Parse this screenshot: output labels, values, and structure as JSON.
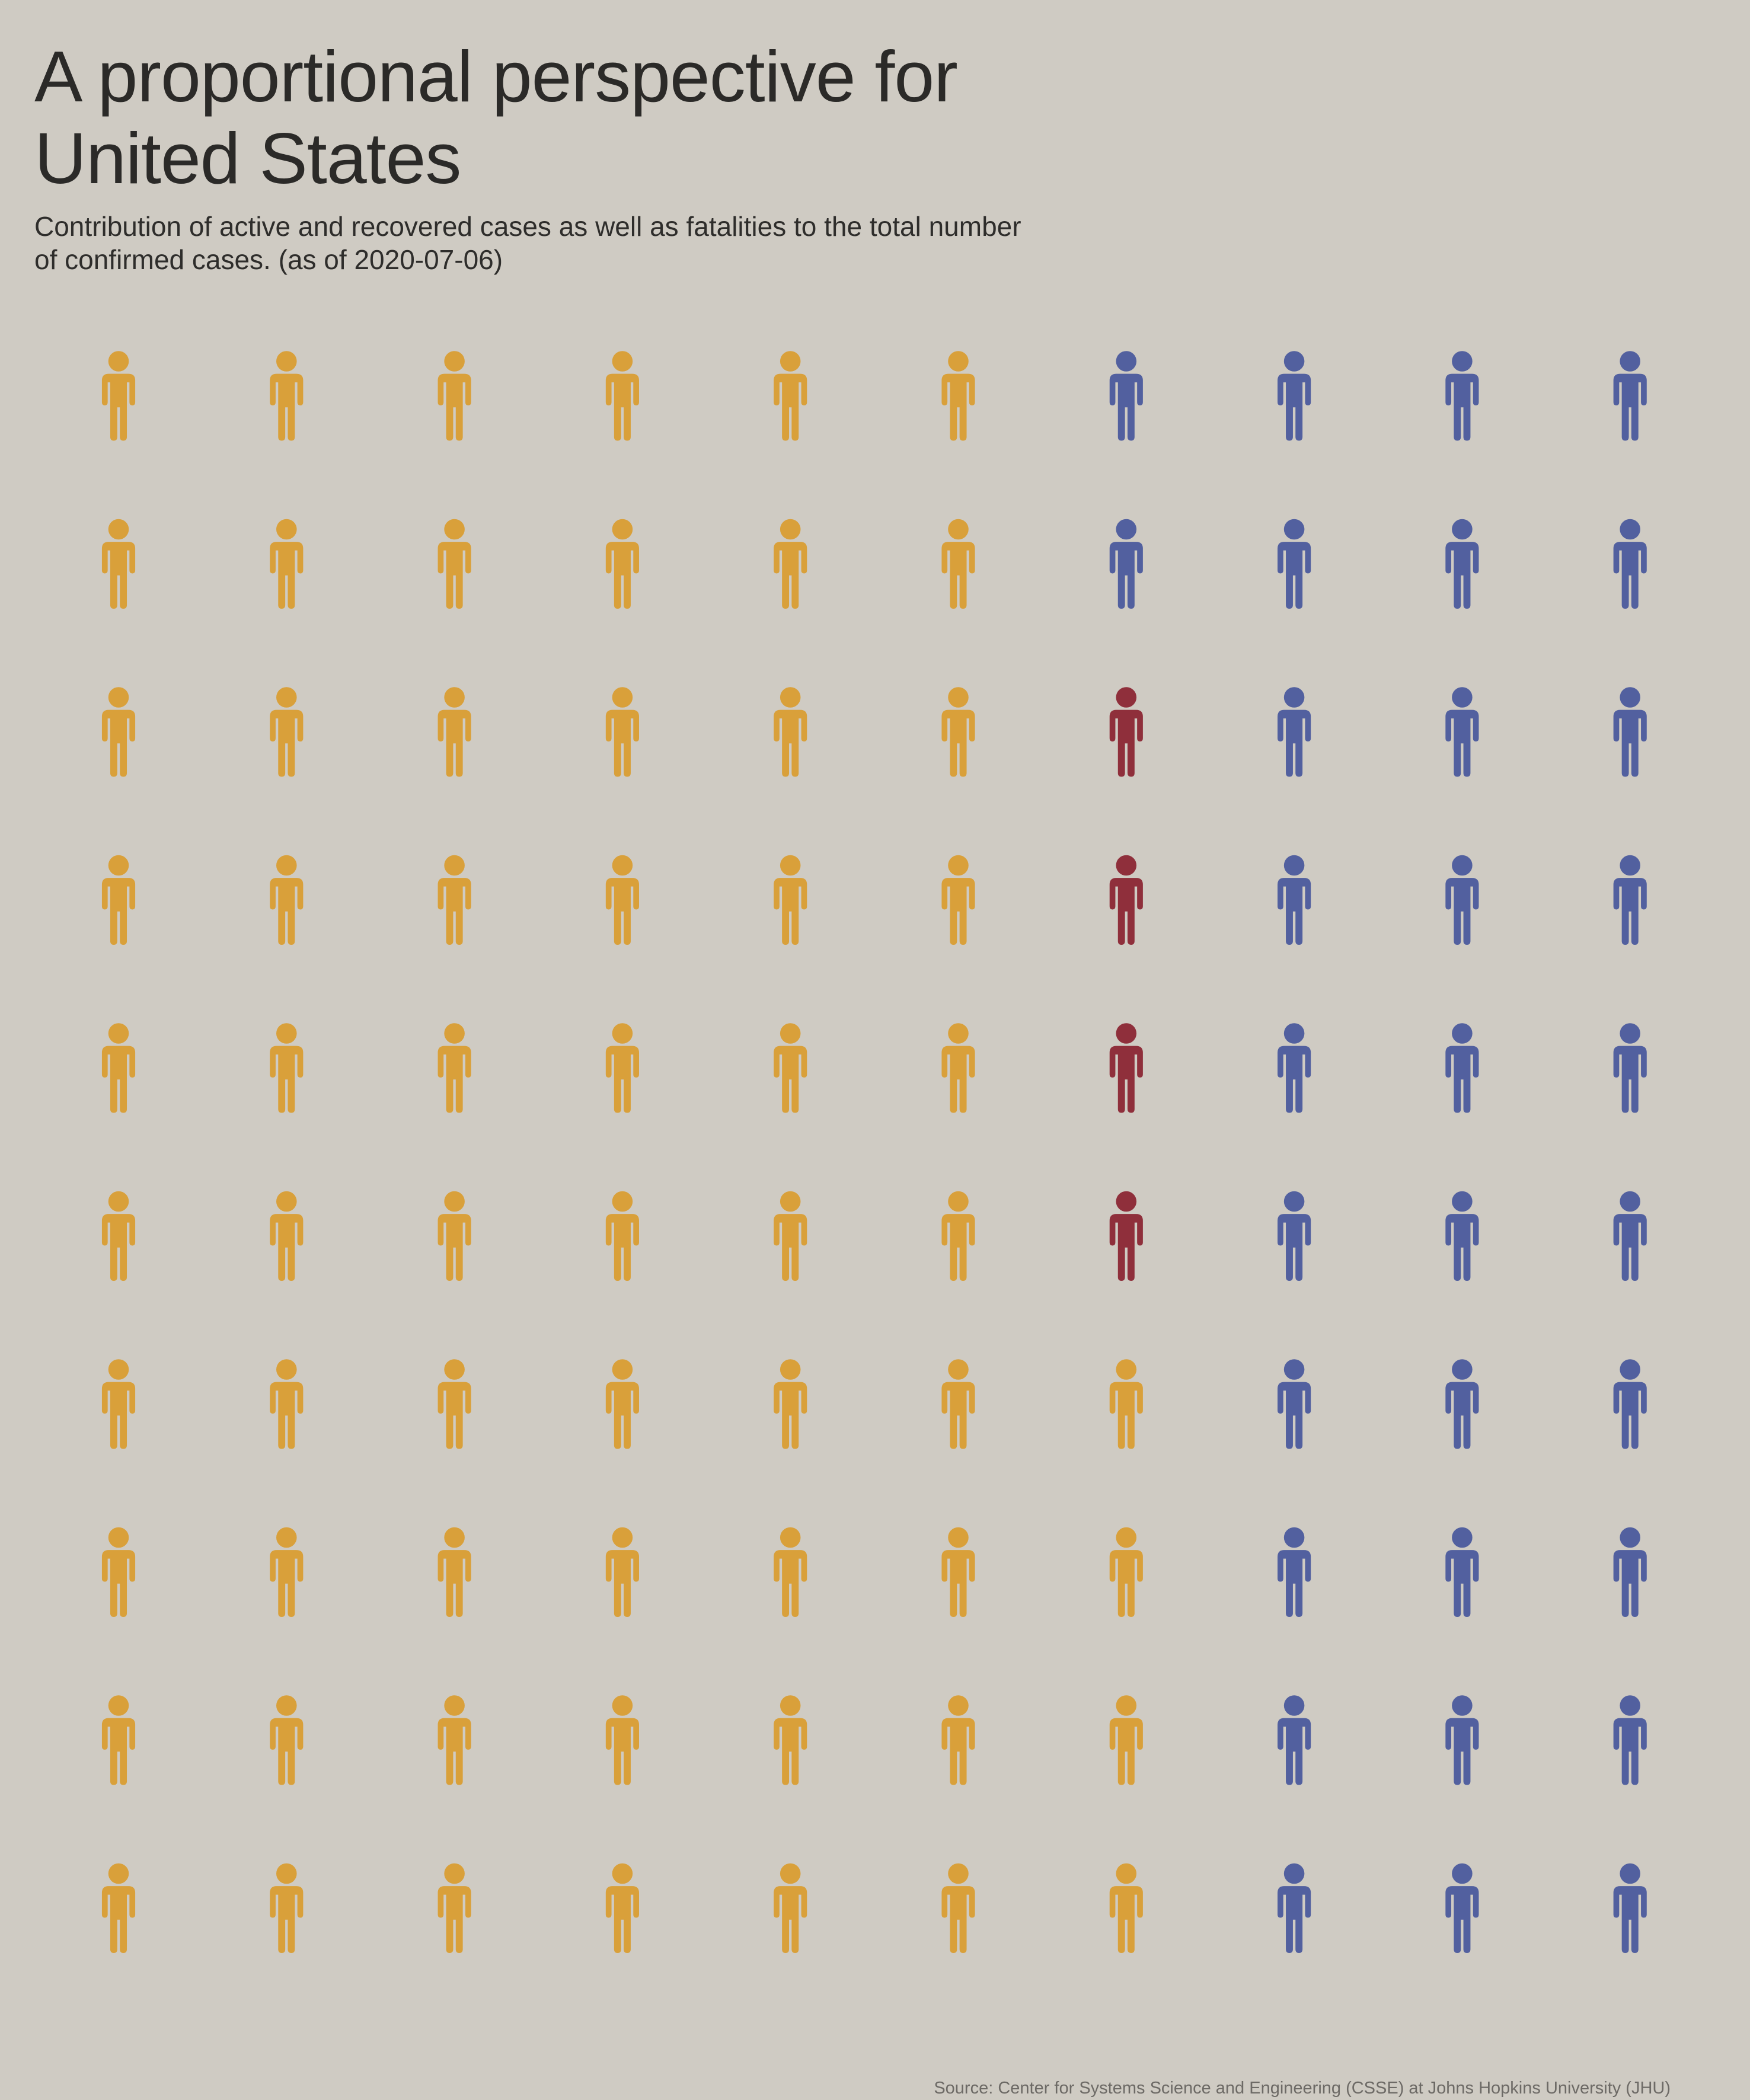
{
  "title": "A proportional perspective for United States",
  "subtitle": "Contribution of active and recovered cases as well as fatalities to the total number of confirmed cases.  (as of 2020-07-06)",
  "source": "Source: Center for Systems Science and Engineering (CSSE) at Johns Hopkins University (JHU)",
  "chart_data": {
    "type": "waffle",
    "total_icons": 100,
    "rows": 10,
    "columns": 10,
    "icon": "person-icon",
    "categories": [
      {
        "key": "active",
        "count": 64,
        "color": "#d9a03a"
      },
      {
        "key": "fatal",
        "count": 4,
        "color": "#8f2f3b"
      },
      {
        "key": "recovered",
        "count": 32,
        "color": "#52609f"
      }
    ],
    "grid": [
      [
        "active",
        "active",
        "active",
        "active",
        "active",
        "active",
        "recovered",
        "recovered",
        "recovered",
        "recovered"
      ],
      [
        "active",
        "active",
        "active",
        "active",
        "active",
        "active",
        "recovered",
        "recovered",
        "recovered",
        "recovered"
      ],
      [
        "active",
        "active",
        "active",
        "active",
        "active",
        "active",
        "fatal",
        "recovered",
        "recovered",
        "recovered"
      ],
      [
        "active",
        "active",
        "active",
        "active",
        "active",
        "active",
        "fatal",
        "recovered",
        "recovered",
        "recovered"
      ],
      [
        "active",
        "active",
        "active",
        "active",
        "active",
        "active",
        "fatal",
        "recovered",
        "recovered",
        "recovered"
      ],
      [
        "active",
        "active",
        "active",
        "active",
        "active",
        "active",
        "fatal",
        "recovered",
        "recovered",
        "recovered"
      ],
      [
        "active",
        "active",
        "active",
        "active",
        "active",
        "active",
        "active",
        "recovered",
        "recovered",
        "recovered"
      ],
      [
        "active",
        "active",
        "active",
        "active",
        "active",
        "active",
        "active",
        "recovered",
        "recovered",
        "recovered"
      ],
      [
        "active",
        "active",
        "active",
        "active",
        "active",
        "active",
        "active",
        "recovered",
        "recovered",
        "recovered"
      ],
      [
        "active",
        "active",
        "active",
        "active",
        "active",
        "active",
        "active",
        "recovered",
        "recovered",
        "recovered"
      ]
    ],
    "legend": "none",
    "grid_lines": false
  }
}
